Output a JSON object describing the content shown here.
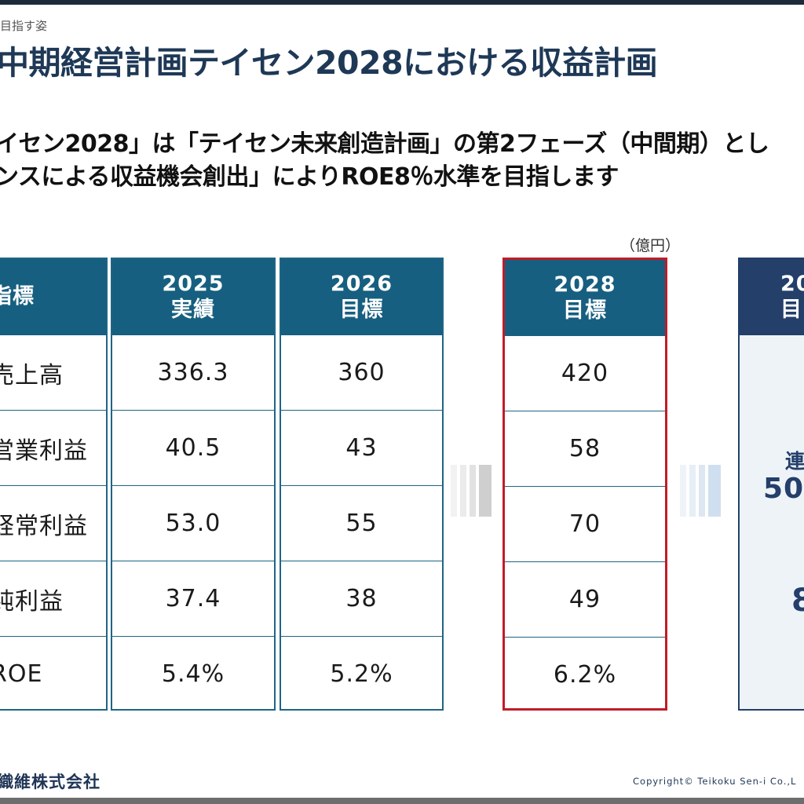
{
  "breadcrumb": "目指す姿",
  "title": "中期経営計画テイセン2028における収益計画",
  "lead_line1": "イセン2028」は「テイセン未来創造計画」の第2フェーズ（中間期）とし",
  "lead_line2": "ンスによる収益機会創出」によりROE8％水準を目指します",
  "unit": "（億円）",
  "table": {
    "label_header": "指標",
    "rows": [
      "売上高",
      "営業利益",
      "経常利益",
      "純利益",
      "ROE"
    ],
    "columns": [
      {
        "year": "2025",
        "kind": "実績",
        "values": [
          "336.3",
          "40.5",
          "53.0",
          "37.4",
          "5.4%"
        ]
      },
      {
        "year": "2026",
        "kind": "目標",
        "values": [
          "360",
          "43",
          "55",
          "38",
          "5.2%"
        ]
      },
      {
        "year": "2028",
        "kind": "目標",
        "values": [
          "420",
          "58",
          "70",
          "49",
          "6.2%"
        ]
      }
    ],
    "partial_column": {
      "year": "20",
      "kind": "目",
      "text1": "連",
      "text2": "50",
      "text3": "8"
    }
  },
  "colors": {
    "accent_red": "#c01c28",
    "header_teal": "#175f80",
    "header_navy": "#233f6a"
  },
  "footer": {
    "company": "織維株式会社",
    "copyright": "Copyright© Teikoku Sen-i Co.,L"
  }
}
